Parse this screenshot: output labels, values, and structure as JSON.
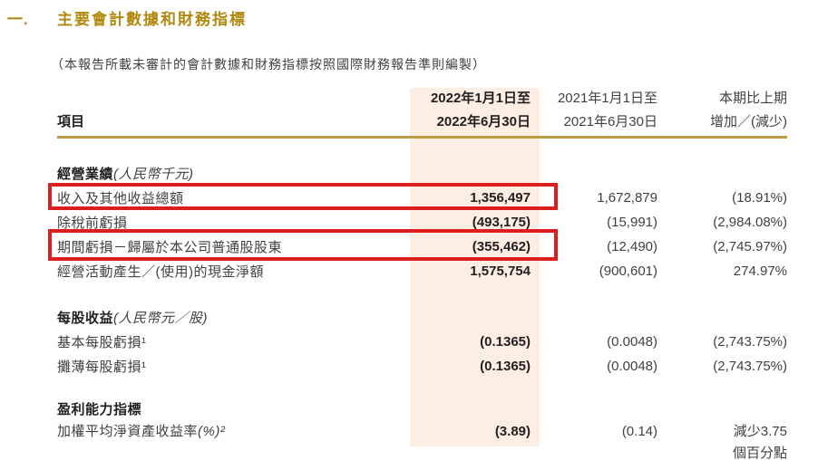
{
  "page": {
    "section_number": "一.",
    "title": "主要會計數據和財務指標",
    "subtitle": "（本報告所載未審計的會計數據和財務指標按照國際財務報告準則編製）"
  },
  "colors": {
    "accent_gold": "#b1890e",
    "rule_gold": "#bd9b40",
    "col_2022_bg": "#fceee2",
    "highlight_red": "#dc1e1e",
    "text_dark": "#231f20",
    "text_gray": "#414042"
  },
  "table": {
    "header": {
      "item_label": "項目",
      "col_2022_line1": "2022年1月1日至",
      "col_2022_line2": "2022年6月30日",
      "col_2021_line1": "2021年1月1日至",
      "col_2021_line2": "2021年6月30日",
      "col_change_line1": "本期比上期",
      "col_change_line2": "增加／(減少)"
    },
    "rows": [
      {
        "type": "section",
        "title": "經營業績",
        "note": "(人民幣千元)"
      },
      {
        "type": "data",
        "label": "收入及其他收益總額",
        "v2022": "1,356,497",
        "v2021": "1,672,879",
        "change": "(18.91%)",
        "highlighted": true
      },
      {
        "type": "data",
        "label": "除稅前虧損",
        "v2022": "(493,175)",
        "v2021": "(15,991)",
        "change": "(2,984.08%)",
        "highlighted": false
      },
      {
        "type": "data",
        "label": "期間虧損－歸屬於本公司普通股股東",
        "v2022": "(355,462)",
        "v2021": "(12,490)",
        "change": "(2,745.97%)",
        "highlighted": true
      },
      {
        "type": "data",
        "label": "經營活動產生／(使用)的現金淨額",
        "v2022": "1,575,754",
        "v2021": "(900,601)",
        "change": "274.97%",
        "highlighted": false
      },
      {
        "type": "section",
        "title": "每股收益",
        "note": "(人民幣元／股)"
      },
      {
        "type": "data",
        "label": "基本每股虧損¹",
        "v2022": "(0.1365)",
        "v2021": "(0.0048)",
        "change": "(2,743.75%)",
        "highlighted": false
      },
      {
        "type": "data",
        "label": "攤薄每股虧損¹",
        "v2022": "(0.1365)",
        "v2021": "(0.0048)",
        "change": "(2,743.75%)",
        "highlighted": false
      },
      {
        "type": "section",
        "title": "盈利能力指標",
        "note": ""
      },
      {
        "type": "data",
        "label": "加權平均淨資產收益率",
        "label_note": "(%)²",
        "v2022": "(3.89)",
        "v2021": "(0.14)",
        "change": "減少3.75\n個百分點",
        "highlighted": false
      }
    ]
  }
}
